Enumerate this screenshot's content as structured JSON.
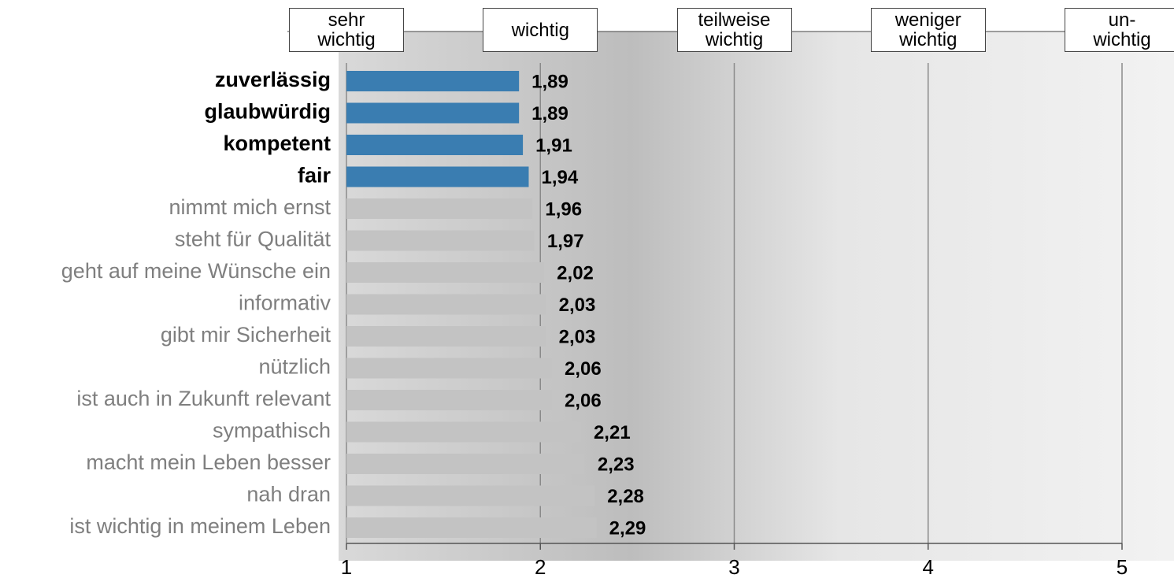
{
  "chart_data": {
    "type": "barh",
    "categories": [
      "zuverlässig",
      "glaubwürdig",
      "kompetent",
      "fair",
      "nimmt mich ernst",
      "steht für Qualität",
      "geht auf meine Wünsche ein",
      "informativ",
      "gibt mir Sicherheit",
      "nützlich",
      "ist auch in Zukunft relevant",
      "sympathisch",
      "macht mein Leben besser",
      "nah dran",
      "ist wichtig in meinem Leben"
    ],
    "values": [
      1.89,
      1.89,
      1.91,
      1.94,
      1.96,
      1.97,
      2.02,
      2.03,
      2.03,
      2.06,
      2.06,
      2.21,
      2.23,
      2.28,
      2.29
    ],
    "value_labels": [
      "1,89",
      "1,89",
      "1,91",
      "1,94",
      "1,96",
      "1,97",
      "2,02",
      "2,03",
      "2,03",
      "2,06",
      "2,06",
      "2,21",
      "2,23",
      "2,28",
      "2,29"
    ],
    "colors": [
      "#3a7db1",
      "#3a7db1",
      "#3a7db1",
      "#3a7db1",
      "#c3c3c3",
      "#c3c3c3",
      "#c3c3c3",
      "#c3c3c3",
      "#c3c3c3",
      "#c3c3c3",
      "#c3c3c3",
      "#c3c3c3",
      "#c3c3c3",
      "#c3c3c3",
      "#c3c3c3"
    ],
    "xlim": [
      1,
      5
    ],
    "xticks": [
      1,
      2,
      3,
      4,
      5
    ],
    "scale_labels": [
      "sehr wichtig",
      "wichtig",
      "teilweise wichtig",
      "weniger wichtig",
      "un-wichtig"
    ],
    "grid": true
  }
}
